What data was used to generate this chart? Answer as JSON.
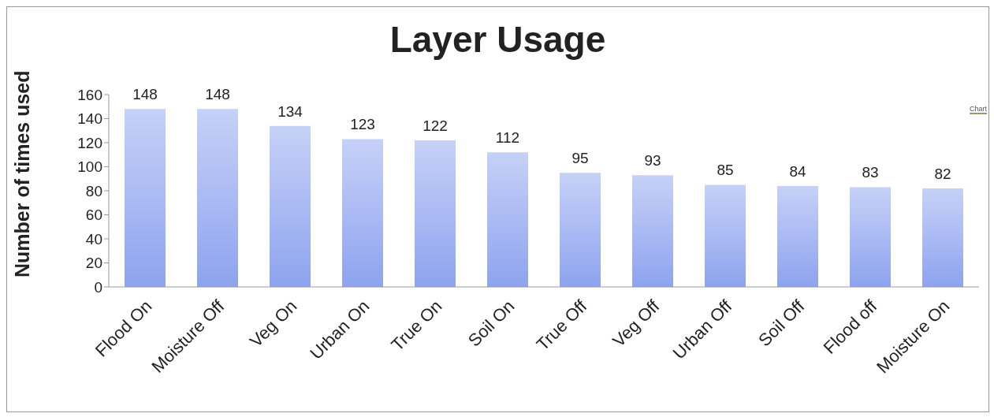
{
  "chart_data": {
    "type": "bar",
    "title": "Layer Usage",
    "ylabel": "Number of times used",
    "categories": [
      "Flood On",
      "Moisture Off",
      "Veg On",
      "Urban On",
      "True On",
      "Soil On",
      "True Off",
      "Veg Off",
      "Urban Off",
      "Soil Off",
      "Flood off",
      "Moisture On"
    ],
    "values": [
      148,
      148,
      134,
      123,
      122,
      112,
      95,
      93,
      85,
      84,
      83,
      82
    ],
    "color": "#8ea3ef",
    "ylim": [
      0,
      160
    ],
    "yticks": [
      0,
      20,
      40,
      60,
      80,
      100,
      120,
      140,
      160
    ],
    "grid": false,
    "data_labels": true,
    "legend": false,
    "annotations": [
      "Chart"
    ]
  }
}
